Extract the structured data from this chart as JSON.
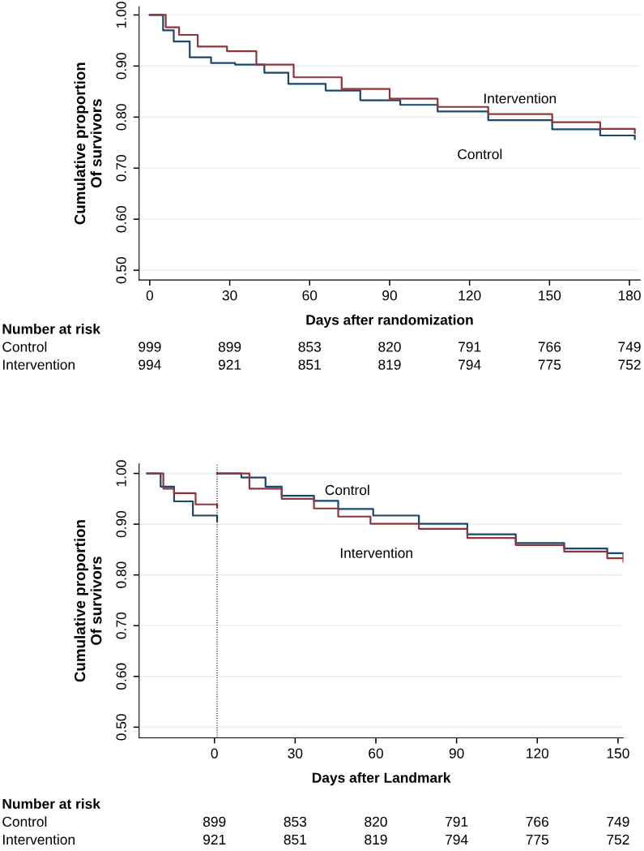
{
  "chart_data": [
    {
      "type": "step",
      "xlabel": "Days after randomization",
      "ylabel": "Cumulative proportion\nOf survivors",
      "xlim": [
        -4,
        184
      ],
      "xticks": [
        0,
        30,
        60,
        90,
        120,
        150,
        180
      ],
      "ylim": [
        0.481,
        1.016
      ],
      "yticks": [
        {
          "value": 0.5,
          "label": "0.50"
        },
        {
          "value": 0.6,
          "label": "0.60"
        },
        {
          "value": 0.7,
          "label": "0.70"
        },
        {
          "value": 0.8,
          "label": "0.80"
        },
        {
          "value": 0.9,
          "label": "0.90"
        },
        {
          "value": 1.0,
          "label": "1.00"
        }
      ],
      "grid": "y",
      "series": [
        {
          "name": "Control",
          "color": "#1a476f",
          "x": [
            0,
            5,
            9,
            15,
            23,
            32,
            43,
            52,
            66,
            79,
            94,
            108,
            127,
            151,
            169,
            182
          ],
          "values": [
            1.0,
            0.97,
            0.948,
            0.917,
            0.906,
            0.903,
            0.887,
            0.865,
            0.852,
            0.833,
            0.824,
            0.811,
            0.794,
            0.776,
            0.764,
            0.757
          ]
        },
        {
          "name": "Intervention",
          "color": "#90353b",
          "x": [
            0,
            6,
            11,
            18,
            29,
            40,
            54,
            72,
            90,
            108,
            127,
            151,
            169,
            182
          ],
          "values": [
            1.0,
            0.976,
            0.961,
            0.938,
            0.929,
            0.903,
            0.878,
            0.855,
            0.836,
            0.82,
            0.806,
            0.79,
            0.777,
            0.769
          ]
        }
      ],
      "annotations": [
        "Number at risk",
        "Control",
        "999",
        "899",
        "853",
        "820",
        "791",
        "766",
        "749",
        "Intervention",
        "994",
        "921",
        "851",
        "819",
        "794",
        "775",
        "752"
      ]
    },
    {
      "type": "step",
      "xlabel": "Days after Landmark",
      "ylabel": "Cumulative proportion\nOf survivors",
      "xlim": [
        -28,
        152
      ],
      "xticks": [
        0,
        30,
        60,
        90,
        120,
        150
      ],
      "ylim": [
        0.479,
        1.019
      ],
      "yticks": [
        {
          "value": 0.5,
          "label": "0.50"
        },
        {
          "value": 0.6,
          "label": "0.60"
        },
        {
          "value": 0.7,
          "label": "0.70"
        },
        {
          "value": 0.8,
          "label": "0.80"
        },
        {
          "value": 0.9,
          "label": "0.90"
        },
        {
          "value": 1.0,
          "label": "1.00"
        }
      ],
      "grid": "y",
      "ref_lines": [
        {
          "axis": "x",
          "value": 1,
          "color": "#000000",
          "line_style": "dotted"
        }
      ],
      "series": [
        {
          "color": "#1a476f",
          "x": [
            -25,
            -20,
            -15,
            -8,
            1
          ],
          "values": [
            1.0,
            0.974,
            0.945,
            0.917,
            0.906
          ]
        },
        {
          "color": "#90353b",
          "x": [
            -25,
            -19,
            -15,
            -7,
            1
          ],
          "values": [
            1.0,
            0.97,
            0.961,
            0.939,
            0.933
          ]
        },
        {
          "name": "Control",
          "color": "#1a476f",
          "x": [
            1,
            10,
            19,
            25,
            37,
            46,
            59,
            76,
            94,
            112,
            130,
            146,
            152
          ],
          "values": [
            1.0,
            0.992,
            0.974,
            0.956,
            0.946,
            0.93,
            0.917,
            0.901,
            0.88,
            0.863,
            0.852,
            0.843,
            0.836
          ]
        },
        {
          "name": "Intervention",
          "color": "#90353b",
          "x": [
            1,
            13,
            25,
            37,
            46,
            58,
            76,
            94,
            112,
            130,
            146,
            152
          ],
          "values": [
            1.0,
            0.97,
            0.95,
            0.931,
            0.915,
            0.901,
            0.891,
            0.873,
            0.859,
            0.846,
            0.833,
            0.826
          ]
        }
      ],
      "annotations": [
        "Number at risk",
        "Control",
        "899",
        "853",
        "820",
        "791",
        "766",
        "749",
        "Intervention",
        "921",
        "851",
        "819",
        "794",
        "775",
        "752"
      ]
    }
  ]
}
